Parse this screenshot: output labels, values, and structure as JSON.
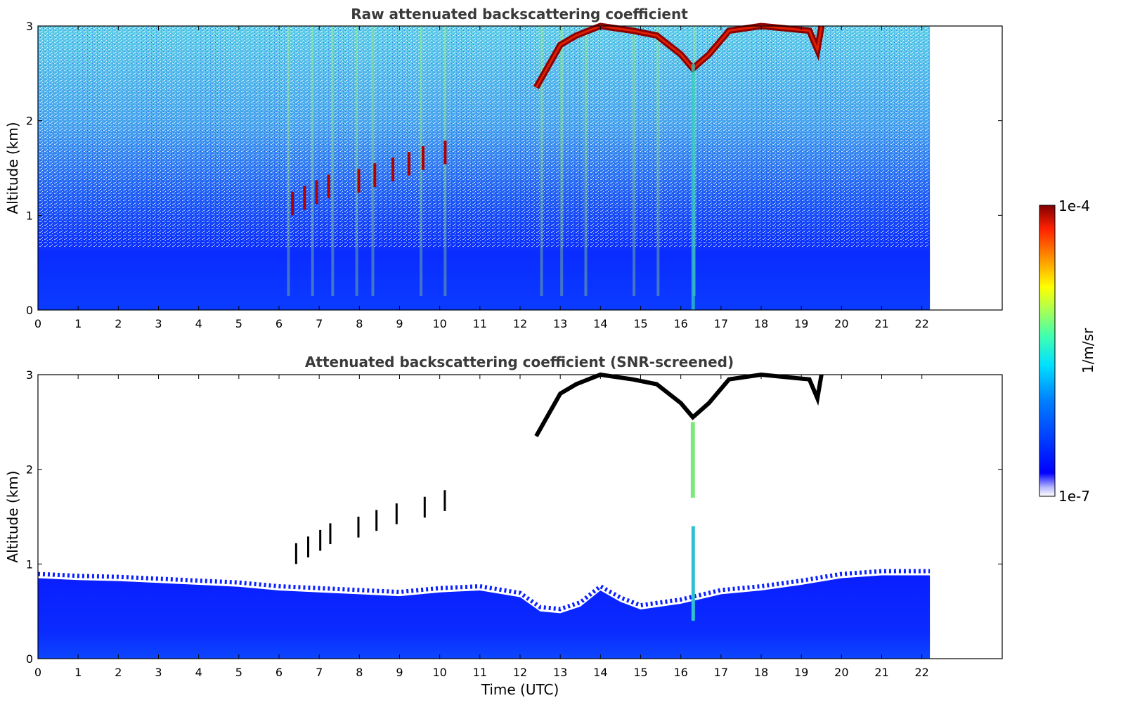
{
  "chart_data": [
    {
      "type": "heatmap",
      "title": "Raw attenuated backscattering coefficient",
      "xlabel": "",
      "ylabel": "Altitude (km)",
      "xlim": [
        0,
        24
      ],
      "ylim": [
        0,
        3
      ],
      "xticks": [
        "0",
        "1",
        "2",
        "3",
        "4",
        "5",
        "6",
        "7",
        "8",
        "9",
        "10",
        "11",
        "12",
        "13",
        "14",
        "15",
        "16",
        "17",
        "18",
        "19",
        "20",
        "21",
        "22"
      ],
      "yticks": [
        "0",
        "1",
        "2",
        "3"
      ],
      "data_end_time": 22.2,
      "features": [
        {
          "name": "cloud layer",
          "x_range": [
            12.4,
            19.5
          ],
          "altitude_range": [
            2.3,
            3.0
          ]
        },
        {
          "name": "cloud fragments",
          "x_range": [
            6.2,
            10.2
          ],
          "altitude_range": [
            0.9,
            1.6
          ]
        },
        {
          "name": "precipitation streak",
          "x": 16.3,
          "altitude_range": [
            0.0,
            2.6
          ]
        }
      ]
    },
    {
      "type": "heatmap",
      "title": "Attenuated backscattering coefficient (SNR-screened)",
      "xlabel": "Time (UTC)",
      "ylabel": "Altitude (km)",
      "xlim": [
        0,
        24
      ],
      "ylim": [
        0,
        3
      ],
      "xticks": [
        "0",
        "1",
        "2",
        "3",
        "4",
        "5",
        "6",
        "7",
        "8",
        "9",
        "10",
        "11",
        "12",
        "13",
        "14",
        "15",
        "16",
        "17",
        "18",
        "19",
        "20",
        "21",
        "22"
      ],
      "yticks": [
        "0",
        "1",
        "2",
        "3"
      ],
      "data_end_time": 22.2,
      "boundary_layer_top": [
        [
          0,
          0.85
        ],
        [
          1,
          0.83
        ],
        [
          2,
          0.82
        ],
        [
          3,
          0.8
        ],
        [
          4,
          0.78
        ],
        [
          5,
          0.76
        ],
        [
          6,
          0.72
        ],
        [
          7,
          0.7
        ],
        [
          8,
          0.68
        ],
        [
          9,
          0.66
        ],
        [
          10,
          0.7
        ],
        [
          11,
          0.72
        ],
        [
          12,
          0.65
        ],
        [
          12.5,
          0.5
        ],
        [
          13,
          0.48
        ],
        [
          13.5,
          0.55
        ],
        [
          14,
          0.72
        ],
        [
          14.5,
          0.6
        ],
        [
          15,
          0.52
        ],
        [
          16,
          0.58
        ],
        [
          17,
          0.68
        ],
        [
          18,
          0.72
        ],
        [
          19,
          0.78
        ],
        [
          20,
          0.85
        ],
        [
          21,
          0.88
        ],
        [
          22.2,
          0.88
        ]
      ]
    }
  ],
  "colorbar": {
    "max_label": "1e-4",
    "min_label": "1e-7",
    "unit_label": "1/m/sr",
    "colormap": "jet",
    "scale": "log",
    "colors": [
      "#ffffff",
      "#a0a0ff",
      "#0000ff",
      "#0080ff",
      "#00d8ff",
      "#40ffb0",
      "#b0ff40",
      "#ffff00",
      "#ff9000",
      "#ff2000",
      "#800000"
    ]
  }
}
